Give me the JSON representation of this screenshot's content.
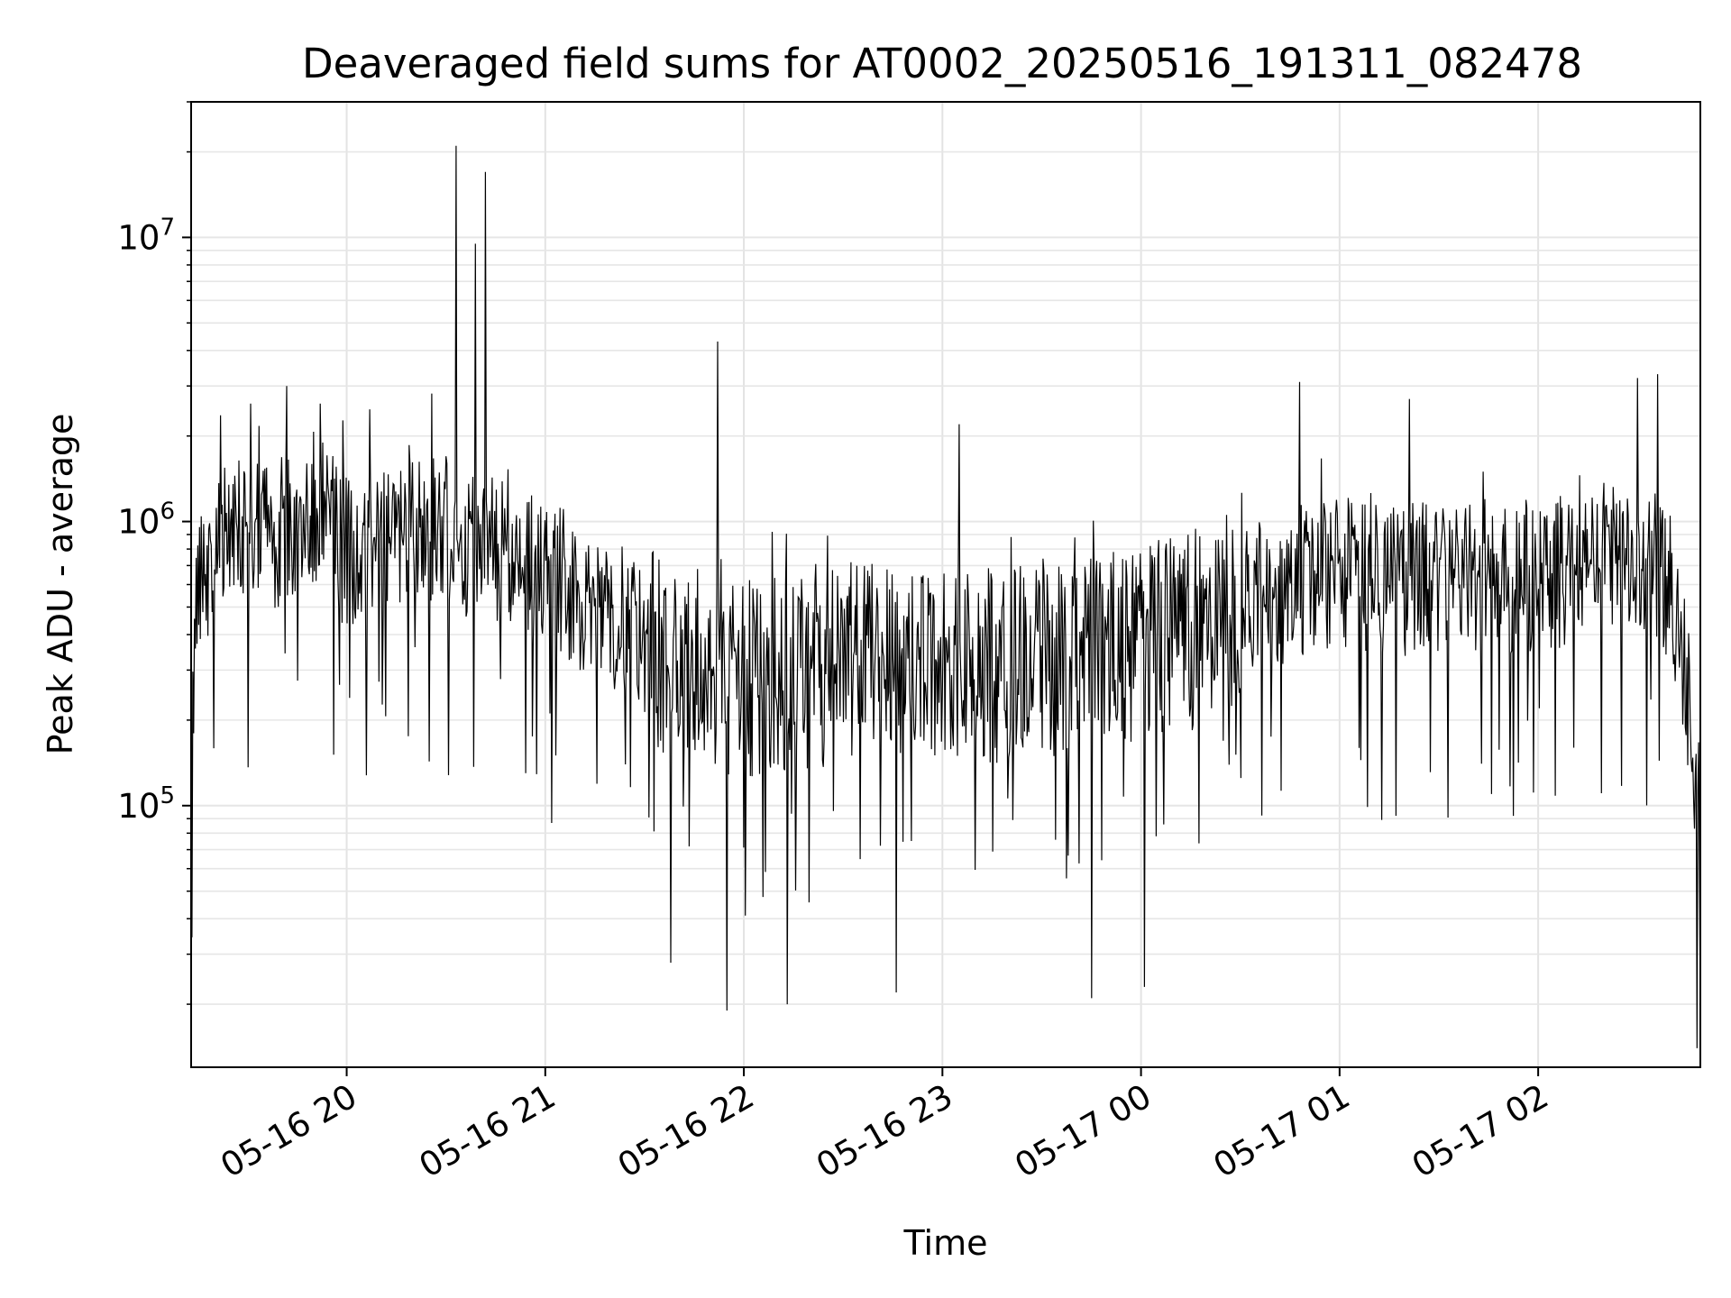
{
  "chart_data": {
    "type": "line",
    "title": "Deaveraged field sums for AT0002_20250516_191311_082478",
    "xlabel": "Time",
    "ylabel": "Peak ADU - average",
    "yscale": "log",
    "ylim": [
      12000,
      30000000
    ],
    "xlim": [
      "2025-05-16 19:13",
      "2025-05-17 02:49"
    ],
    "grid": true,
    "line_color": "#000000",
    "x_ticks": [
      {
        "value": "2025-05-16 20:00",
        "label": "05-16 20"
      },
      {
        "value": "2025-05-16 21:00",
        "label": "05-16 21"
      },
      {
        "value": "2025-05-16 22:00",
        "label": "05-16 22"
      },
      {
        "value": "2025-05-16 23:00",
        "label": "05-16 23"
      },
      {
        "value": "2025-05-17 00:00",
        "label": "05-17 00"
      },
      {
        "value": "2025-05-17 01:00",
        "label": "05-17 01"
      },
      {
        "value": "2025-05-17 02:00",
        "label": "05-17 02"
      }
    ],
    "y_ticks": [
      {
        "value": 100000,
        "base": "10",
        "exp": "5"
      },
      {
        "value": 1000000,
        "base": "10",
        "exp": "6"
      },
      {
        "value": 10000000,
        "base": "10",
        "exp": "7"
      }
    ],
    "series": [
      {
        "x": [
          "2025-05-16 19:13",
          "2025-05-16 19:15",
          "2025-05-16 19:20",
          "2025-05-16 19:25",
          "2025-05-16 19:30",
          "2025-05-16 19:35",
          "2025-05-16 19:40",
          "2025-05-16 19:45",
          "2025-05-16 19:50",
          "2025-05-16 19:55",
          "2025-05-16 20:00",
          "2025-05-16 20:05",
          "2025-05-16 20:10",
          "2025-05-16 20:15",
          "2025-05-16 20:20",
          "2025-05-16 20:25",
          "2025-05-16 20:30",
          "2025-05-16 20:35",
          "2025-05-16 20:40",
          "2025-05-16 20:45",
          "2025-05-16 20:50",
          "2025-05-16 20:55",
          "2025-05-16 21:00",
          "2025-05-16 21:10",
          "2025-05-16 21:20",
          "2025-05-16 21:30",
          "2025-05-16 21:40",
          "2025-05-16 21:50",
          "2025-05-16 22:00",
          "2025-05-16 22:15",
          "2025-05-16 22:30",
          "2025-05-16 22:45",
          "2025-05-16 23:00",
          "2025-05-16 23:15",
          "2025-05-16 23:30",
          "2025-05-16 23:45",
          "2025-05-17 00:00",
          "2025-05-17 00:15",
          "2025-05-17 00:30",
          "2025-05-17 00:45",
          "2025-05-17 01:00",
          "2025-05-17 01:15",
          "2025-05-17 01:30",
          "2025-05-17 01:45",
          "2025-05-17 02:00",
          "2025-05-17 02:10",
          "2025-05-17 02:20",
          "2025-05-17 02:30",
          "2025-05-17 02:40",
          "2025-05-17 02:45",
          "2025-05-17 02:49"
        ],
        "y": [
          150000,
          700000,
          900000,
          1200000,
          1100000,
          1000000,
          1100000,
          1200000,
          1300000,
          1100000,
          900000,
          1000000,
          1000000,
          1100000,
          1200000,
          1100000,
          1100000,
          1000000,
          1000000,
          900000,
          900000,
          800000,
          750000,
          650000,
          500000,
          450000,
          400000,
          350000,
          350000,
          350000,
          400000,
          400000,
          380000,
          380000,
          400000,
          420000,
          450000,
          500000,
          600000,
          700000,
          800000,
          700000,
          750000,
          750000,
          750000,
          800000,
          850000,
          900000,
          700000,
          300000,
          100000
        ]
      }
    ],
    "annotation_peaks": [
      {
        "x": "2025-05-16 19:31",
        "y": 2600000
      },
      {
        "x": "2025-05-16 19:42",
        "y": 3000000
      },
      {
        "x": "2025-05-16 19:52",
        "y": 2600000
      },
      {
        "x": "2025-05-16 20:33",
        "y": 21000000
      },
      {
        "x": "2025-05-16 20:39",
        "y": 9500000
      },
      {
        "x": "2025-05-16 20:42",
        "y": 17000000
      },
      {
        "x": "2025-05-16 21:52",
        "y": 4300000
      },
      {
        "x": "2025-05-16 23:05",
        "y": 2200000
      },
      {
        "x": "2025-05-17 00:48",
        "y": 3100000
      },
      {
        "x": "2025-05-17 01:21",
        "y": 2700000
      },
      {
        "x": "2025-05-17 02:30",
        "y": 3200000
      },
      {
        "x": "2025-05-17 02:36",
        "y": 3300000
      }
    ],
    "annotation_troughs": [
      {
        "x": "2025-05-16 21:38",
        "y": 28000
      },
      {
        "x": "2025-05-16 21:55",
        "y": 19000
      },
      {
        "x": "2025-05-16 22:13",
        "y": 20000
      },
      {
        "x": "2025-05-16 22:46",
        "y": 22000
      },
      {
        "x": "2025-05-16 23:45",
        "y": 21000
      },
      {
        "x": "2025-05-17 00:01",
        "y": 23000
      },
      {
        "x": "2025-05-17 02:48",
        "y": 14000
      }
    ]
  }
}
